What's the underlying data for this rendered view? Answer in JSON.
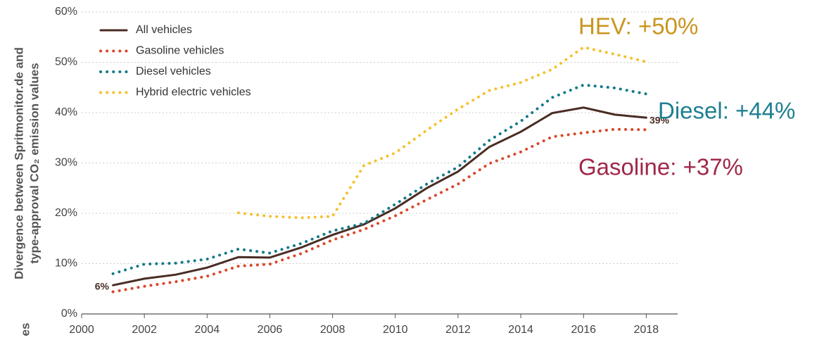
{
  "chart_data": {
    "type": "line",
    "y_label": [
      "Divergence between Spritmonitor.de and",
      "type-approval CO₂ emission values"
    ],
    "cut_text": "es",
    "x": [
      2001,
      2002,
      2003,
      2004,
      2005,
      2006,
      2007,
      2008,
      2009,
      2010,
      2011,
      2012,
      2013,
      2014,
      2015,
      2016,
      2017,
      2018
    ],
    "xlim": [
      2000,
      2019
    ],
    "xticks": [
      2000,
      2002,
      2004,
      2006,
      2008,
      2010,
      2012,
      2014,
      2016,
      2018
    ],
    "ylim": [
      0,
      60
    ],
    "yticks": [
      {
        "value": 0,
        "label": "0%"
      },
      {
        "value": 10,
        "label": "10%"
      },
      {
        "value": 20,
        "label": "20%"
      },
      {
        "value": 30,
        "label": "30%"
      },
      {
        "value": 40,
        "label": "40%"
      },
      {
        "value": 50,
        "label": "50%"
      },
      {
        "value": 60,
        "label": "60%"
      }
    ],
    "grid": true,
    "legend": "top-left",
    "series": [
      {
        "name": "All vehicles",
        "color": "#4a2c24",
        "style": "solid",
        "values": [
          5.7,
          7.0,
          7.8,
          9.2,
          11.3,
          11.2,
          13.2,
          15.7,
          17.8,
          21.0,
          25.0,
          28.3,
          33.2,
          36.2,
          39.9,
          41.0,
          39.6,
          39.0
        ]
      },
      {
        "name": "Gasoline vehicles",
        "color": "#d9482b",
        "style": "dotted",
        "values": [
          4.4,
          5.5,
          6.4,
          7.5,
          9.5,
          9.9,
          12.0,
          14.7,
          16.8,
          19.5,
          22.7,
          25.8,
          29.9,
          32.2,
          35.2,
          36.0,
          36.7,
          36.6
        ]
      },
      {
        "name": "Diesel vehicles",
        "color": "#157a8a",
        "style": "dotted",
        "values": [
          8.0,
          9.9,
          10.1,
          10.9,
          12.9,
          12.1,
          14.0,
          16.5,
          18.0,
          21.8,
          25.8,
          29.2,
          34.5,
          38.3,
          43.0,
          45.5,
          44.9,
          43.7
        ]
      },
      {
        "name": "Hybrid electric vehicles",
        "color": "#f5c12e",
        "style": "dotted",
        "values": [
          null,
          null,
          null,
          null,
          20.1,
          19.4,
          19.1,
          19.4,
          29.5,
          32.0,
          36.5,
          40.7,
          44.4,
          46.0,
          48.6,
          53.0,
          51.6,
          50.1
        ]
      }
    ],
    "annotations": [
      {
        "text": "6%",
        "color": "#4a2c24"
      },
      {
        "text": "39%",
        "color": "#4a2c24"
      },
      {
        "text": "HEV: +50%",
        "color": "#c8961e"
      },
      {
        "text": "Diesel: +44%",
        "color": "#1e8090"
      },
      {
        "text": "Gasoline: +37%",
        "color": "#a02848"
      }
    ]
  }
}
